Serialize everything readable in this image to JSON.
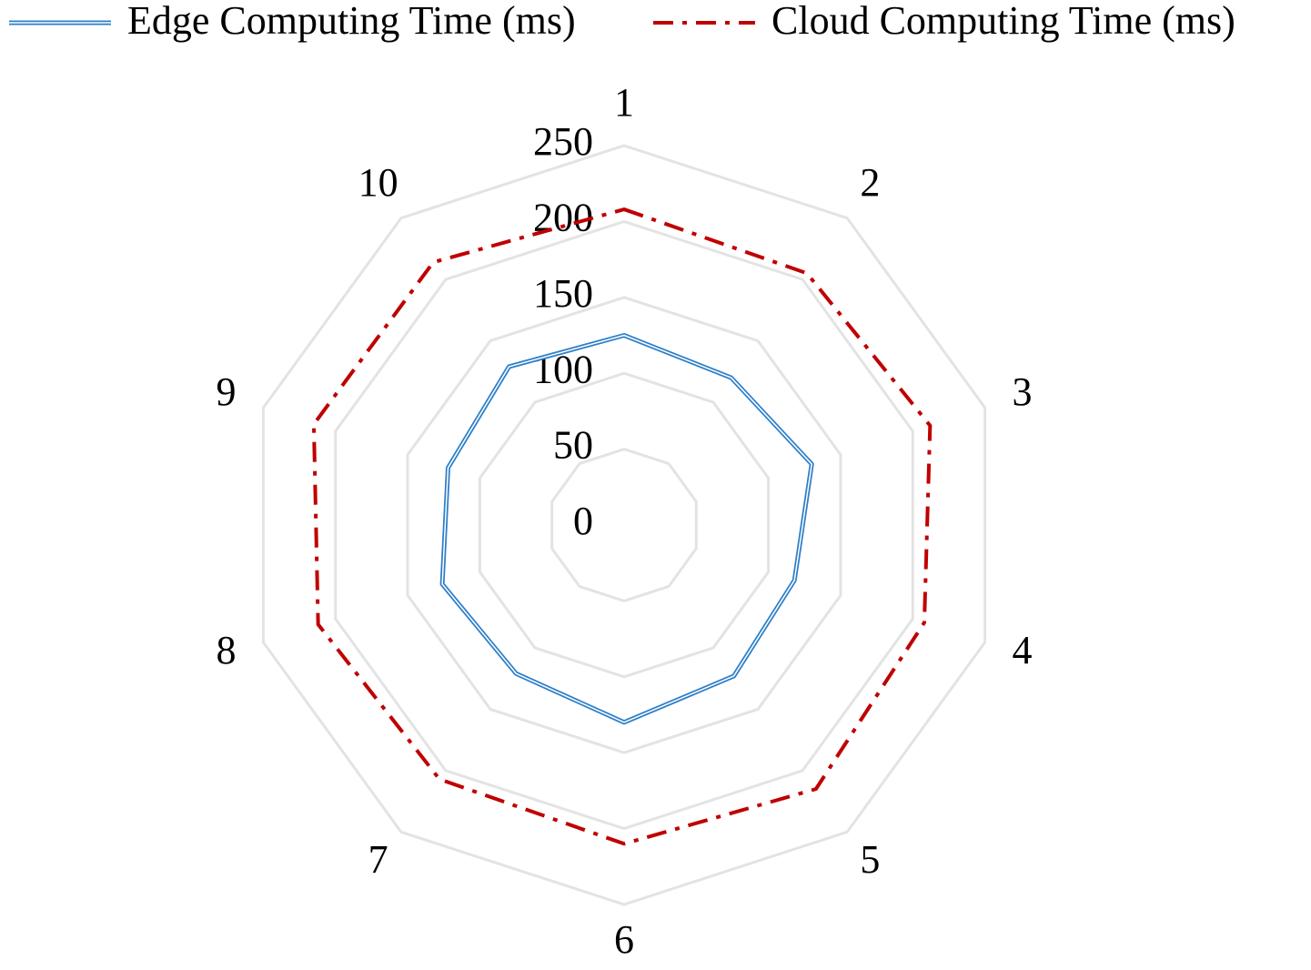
{
  "chart_data": {
    "type": "radar",
    "categories": [
      "1",
      "2",
      "3",
      "4",
      "5",
      "6",
      "7",
      "8",
      "9",
      "10"
    ],
    "series": [
      {
        "name": "Edge Computing Time (ms)",
        "color": "#2e7fc8",
        "style": "double",
        "values": [
          125,
          120,
          130,
          118,
          123,
          130,
          121,
          126,
          122,
          129
        ]
      },
      {
        "name": "Cloud Computing Time (ms)",
        "color": "#c00000",
        "style": "dash-dot",
        "values": [
          208,
          205,
          212,
          208,
          215,
          210,
          207,
          212,
          215,
          214
        ]
      }
    ],
    "rlim": [
      0,
      250
    ],
    "rticks": [
      0,
      50,
      100,
      150,
      200,
      250
    ],
    "grid": true,
    "grid_color": "#e3e3e3",
    "legend": "top"
  }
}
